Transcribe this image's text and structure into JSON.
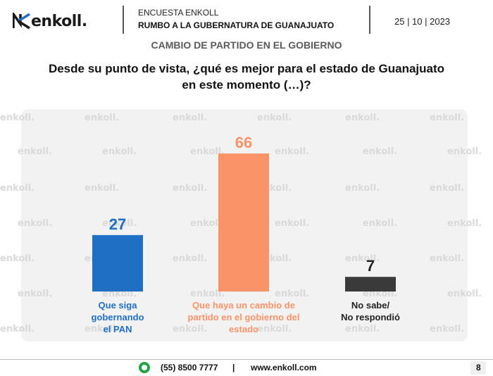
{
  "header": {
    "logo_text": "enkoll",
    "logo_dot": ".",
    "survey_label": "ENCUESTA ENKOLL",
    "survey_title": "RUMBO A LA GUBERNATURA DE GUANAJUATO",
    "date": "25 | 10 | 2023"
  },
  "subtitle": "CAMBIO DE PARTIDO EN EL GOBIERNO",
  "question": "Desde su punto de vista, ¿qué es mejor para el estado de Guanajuato en este momento (…)?",
  "watermark": "enkoll.",
  "chart_data": {
    "type": "bar",
    "categories": [
      "Que siga gobernando el PAN",
      "Que haya un cambio de partido en el gobierno del estado",
      "No sabe/ No respondió"
    ],
    "values": [
      27,
      66,
      7
    ],
    "colors": [
      "#1f6fc5",
      "#fa9367",
      "#3a3a3a"
    ],
    "label_colors": [
      "#1f6fc5",
      "#fa9367",
      "#222222"
    ],
    "category_lines": [
      [
        "Que siga",
        "gobernando",
        "el PAN"
      ],
      [
        "Que haya un cambio de",
        "partido en el gobierno del",
        "estado"
      ],
      [
        "No sabe/",
        "No respondió"
      ]
    ],
    "ylim": [
      0,
      66
    ]
  },
  "footer": {
    "phone": "(55) 8500 7777",
    "separator": "|",
    "website": "www.enkoll.com",
    "page_number": "8"
  },
  "icons": {
    "logo": "enkoll-logo-icon",
    "contact": "whatsapp-icon"
  }
}
